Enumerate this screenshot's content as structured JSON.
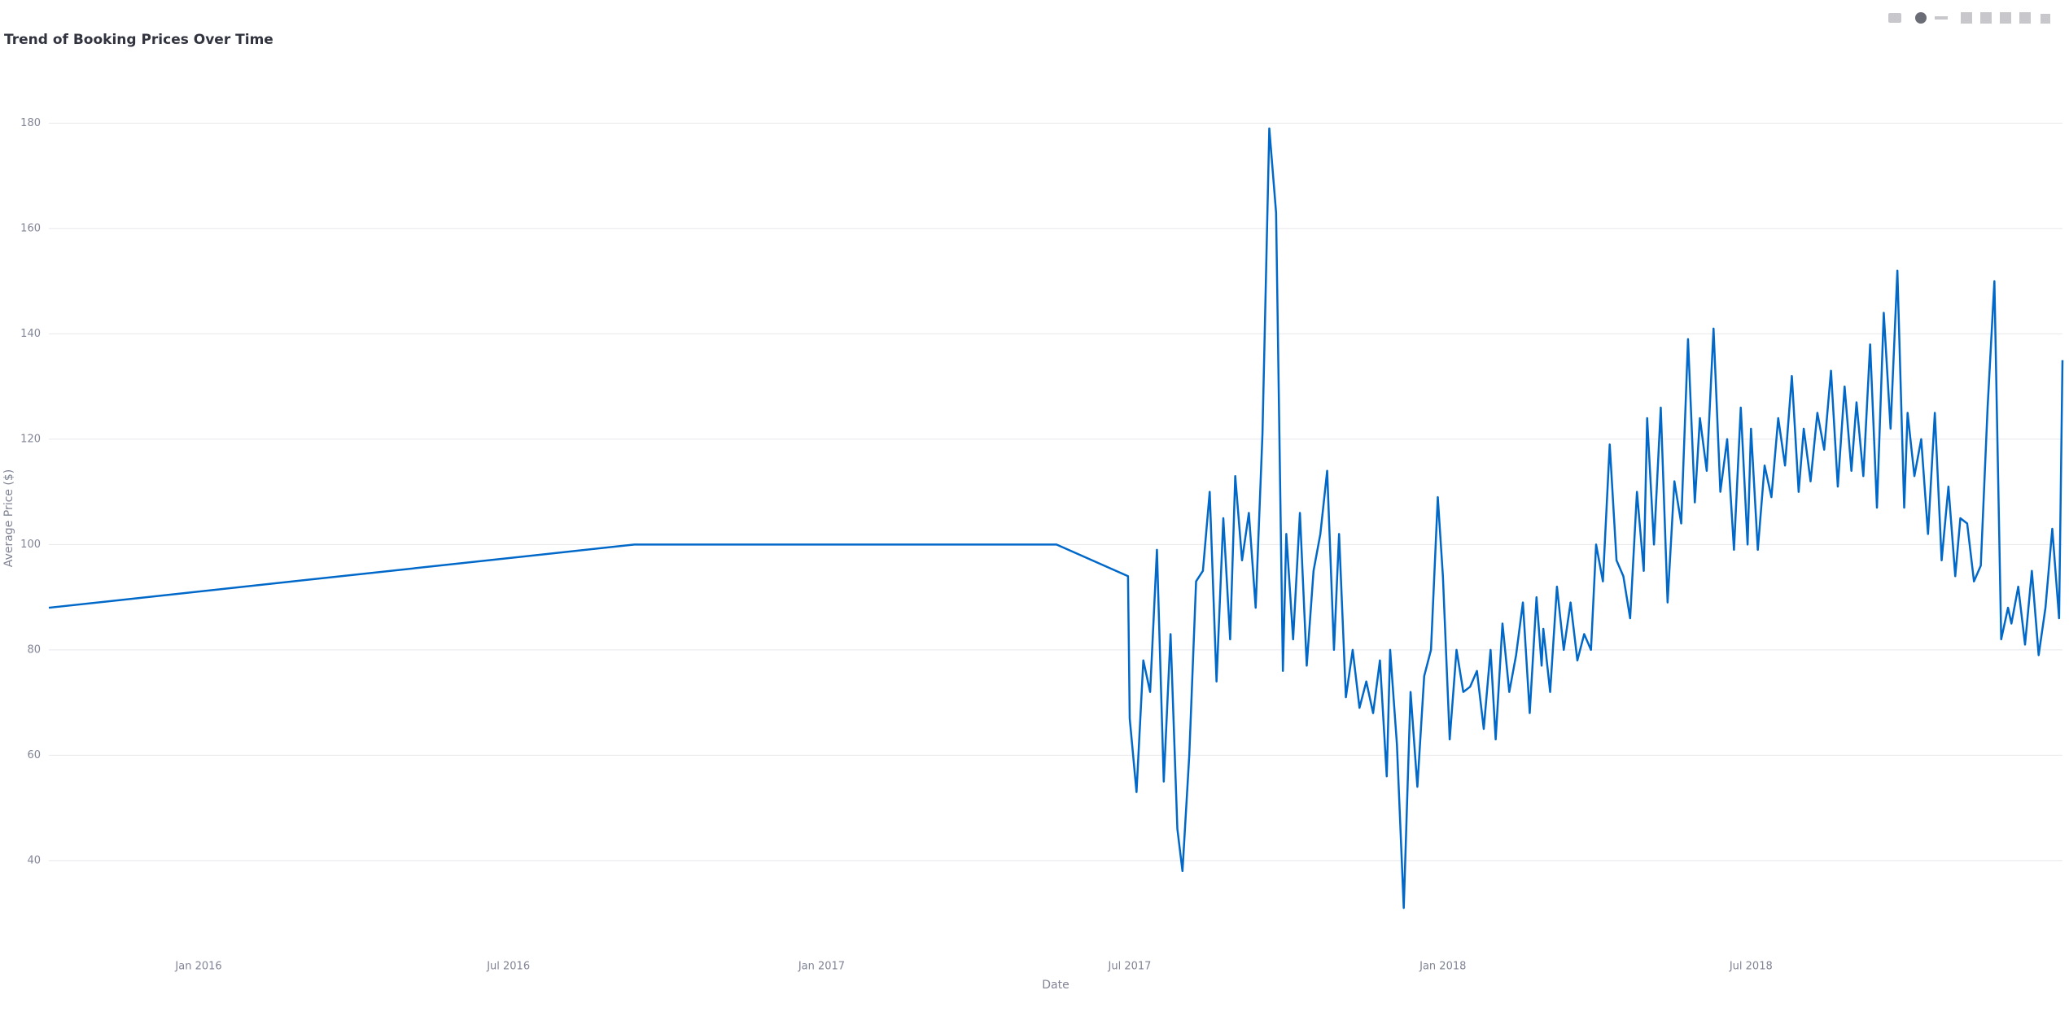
{
  "chart_data": {
    "type": "line",
    "title": "Trend of Booking Prices Over Time",
    "xlabel": "Date",
    "ylabel": "Average Price ($)",
    "x": [
      "2015-10-05",
      "2016-09-13",
      "2017-05-19",
      "2017-06-30",
      "2017-07-01",
      "2017-07-05",
      "2017-07-09",
      "2017-07-13",
      "2017-07-17",
      "2017-07-21",
      "2017-07-25",
      "2017-07-29",
      "2017-08-01",
      "2017-08-05",
      "2017-08-09",
      "2017-08-13",
      "2017-08-17",
      "2017-08-21",
      "2017-08-25",
      "2017-08-29",
      "2017-09-01",
      "2017-09-05",
      "2017-09-09",
      "2017-09-13",
      "2017-09-17",
      "2017-09-21",
      "2017-09-25",
      "2017-09-29",
      "2017-10-01",
      "2017-10-05",
      "2017-10-09",
      "2017-10-13",
      "2017-10-17",
      "2017-10-21",
      "2017-10-25",
      "2017-10-29",
      "2017-11-01",
      "2017-11-05",
      "2017-11-09",
      "2017-11-13",
      "2017-11-17",
      "2017-11-21",
      "2017-11-25",
      "2017-11-29",
      "2017-12-01",
      "2017-12-05",
      "2017-12-09",
      "2017-12-13",
      "2017-12-17",
      "2017-12-21",
      "2017-12-25",
      "2017-12-29",
      "2018-01-01",
      "2018-01-05",
      "2018-01-09",
      "2018-01-13",
      "2018-01-17",
      "2018-01-21",
      "2018-01-25",
      "2018-01-29",
      "2018-02-01",
      "2018-02-05",
      "2018-02-09",
      "2018-02-13",
      "2018-02-17",
      "2018-02-21",
      "2018-02-25",
      "2018-02-28",
      "2018-03-01",
      "2018-03-05",
      "2018-03-09",
      "2018-03-13",
      "2018-03-17",
      "2018-03-21",
      "2018-03-25",
      "2018-03-29",
      "2018-04-01",
      "2018-04-05",
      "2018-04-09",
      "2018-04-13",
      "2018-04-17",
      "2018-04-21",
      "2018-04-25",
      "2018-04-29",
      "2018-05-01",
      "2018-05-05",
      "2018-05-09",
      "2018-05-13",
      "2018-05-17",
      "2018-05-21",
      "2018-05-25",
      "2018-05-29",
      "2018-06-01",
      "2018-06-05",
      "2018-06-09",
      "2018-06-13",
      "2018-06-17",
      "2018-06-21",
      "2018-06-25",
      "2018-06-29",
      "2018-07-01",
      "2018-07-05",
      "2018-07-09",
      "2018-07-13",
      "2018-07-17",
      "2018-07-21",
      "2018-07-25",
      "2018-07-29",
      "2018-08-01",
      "2018-08-05",
      "2018-08-09",
      "2018-08-13",
      "2018-08-17",
      "2018-08-21",
      "2018-08-25",
      "2018-08-29",
      "2018-09-01",
      "2018-09-05",
      "2018-09-09",
      "2018-09-13",
      "2018-09-17",
      "2018-09-21",
      "2018-09-25",
      "2018-09-29",
      "2018-10-01",
      "2018-10-05",
      "2018-10-09",
      "2018-10-13",
      "2018-10-17",
      "2018-10-21",
      "2018-10-25",
      "2018-10-29",
      "2018-11-01",
      "2018-11-05",
      "2018-11-09",
      "2018-11-13",
      "2018-11-17",
      "2018-11-21",
      "2018-11-25",
      "2018-11-29",
      "2018-12-01",
      "2018-12-05",
      "2018-12-09",
      "2018-12-13",
      "2018-12-17",
      "2018-12-21",
      "2018-12-25",
      "2018-12-29",
      "2018-12-31"
    ],
    "series": [
      {
        "name": "Average Price",
        "color": "#0068c9",
        "values": [
          88,
          100,
          100,
          94,
          67,
          53,
          78,
          72,
          99,
          55,
          83,
          46,
          38,
          60,
          93,
          95,
          110,
          74,
          105,
          82,
          113,
          97,
          106,
          88,
          121,
          179,
          163,
          76,
          102,
          82,
          106,
          77,
          95,
          102,
          114,
          80,
          102,
          71,
          80,
          69,
          74,
          68,
          78,
          56,
          80,
          62,
          31,
          72,
          54,
          75,
          80,
          109,
          94,
          63,
          80,
          72,
          73,
          76,
          65,
          80,
          63,
          85,
          72,
          79,
          89,
          68,
          90,
          77,
          84,
          72,
          92,
          80,
          89,
          78,
          83,
          80,
          100,
          93,
          119,
          97,
          94,
          86,
          110,
          95,
          124,
          100,
          126,
          89,
          112,
          104,
          139,
          108,
          124,
          114,
          141,
          110,
          120,
          99,
          126,
          100,
          122,
          99,
          115,
          109,
          124,
          115,
          132,
          110,
          122,
          112,
          125,
          118,
          133,
          111,
          130,
          114,
          127,
          113,
          138,
          107,
          144,
          122,
          152,
          107,
          125,
          113,
          120,
          102,
          125,
          97,
          111,
          94,
          105,
          104,
          93,
          96,
          126,
          150,
          82,
          88,
          85,
          92,
          81,
          95,
          79,
          88,
          103,
          86,
          135
        ]
      }
    ],
    "xlim": [
      "2015-10-05",
      "2018-12-31"
    ],
    "xticks": [
      {
        "value": "2016-01-01",
        "label": "Jan 2016"
      },
      {
        "value": "2016-07-01",
        "label": "Jul 2016"
      },
      {
        "value": "2017-01-01",
        "label": "Jan 2017"
      },
      {
        "value": "2017-07-01",
        "label": "Jul 2017"
      },
      {
        "value": "2018-01-01",
        "label": "Jan 2018"
      },
      {
        "value": "2018-07-01",
        "label": "Jul 2018"
      }
    ],
    "ylim": [
      27,
      183
    ],
    "yticks": [
      40,
      60,
      80,
      100,
      120,
      140,
      160,
      180
    ],
    "grid": true
  }
}
